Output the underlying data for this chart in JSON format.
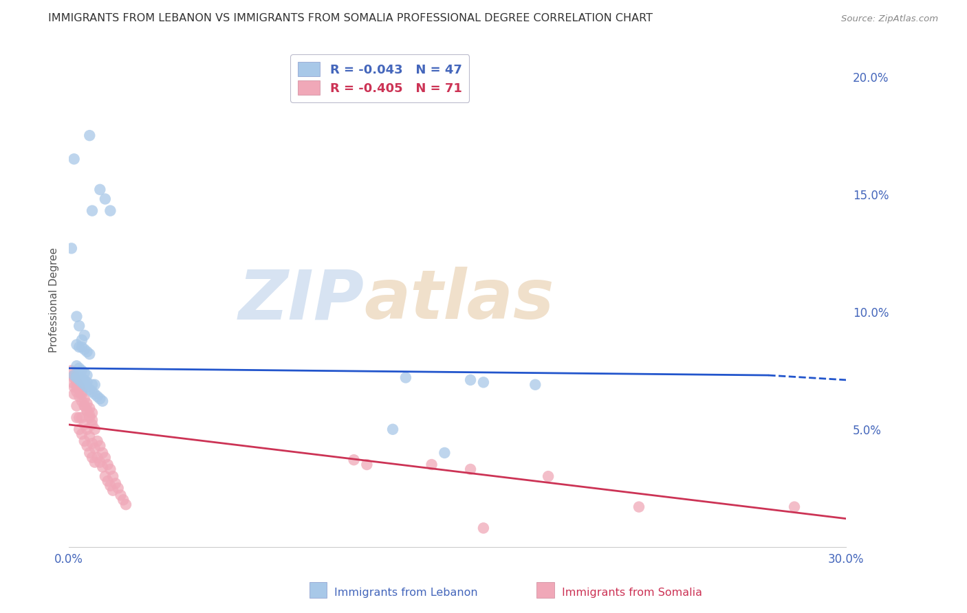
{
  "title": "IMMIGRANTS FROM LEBANON VS IMMIGRANTS FROM SOMALIA PROFESSIONAL DEGREE CORRELATION CHART",
  "source": "Source: ZipAtlas.com",
  "ylabel": "Professional Degree",
  "xlim": [
    0.0,
    0.3
  ],
  "ylim": [
    0.0,
    0.21
  ],
  "lebanon_color": "#a8c8e8",
  "somalia_color": "#f0a8b8",
  "lebanon_line_color": "#2255cc",
  "somalia_line_color": "#cc3355",
  "background_color": "#ffffff",
  "grid_color": "#ccccdd",
  "title_color": "#333333",
  "axis_color": "#4466bb",
  "somalia_label_color": "#cc3355",
  "watermark_text": "ZIPatlas",
  "watermark_color": "#d0dff0",
  "lebanon_R": -0.043,
  "lebanon_N": 47,
  "somalia_R": -0.405,
  "somalia_N": 71,
  "lebanon_x": [
    0.008,
    0.002,
    0.012,
    0.014,
    0.009,
    0.016,
    0.001,
    0.003,
    0.004,
    0.006,
    0.005,
    0.003,
    0.004,
    0.005,
    0.006,
    0.007,
    0.008,
    0.003,
    0.004,
    0.005,
    0.006,
    0.007,
    0.009,
    0.01,
    0.002,
    0.003,
    0.004,
    0.005,
    0.006,
    0.007,
    0.008,
    0.009,
    0.01,
    0.011,
    0.012,
    0.013,
    0.003,
    0.004,
    0.005,
    0.006,
    0.007,
    0.13,
    0.155,
    0.16,
    0.18,
    0.125,
    0.145
  ],
  "lebanon_y": [
    0.175,
    0.165,
    0.152,
    0.148,
    0.143,
    0.143,
    0.127,
    0.098,
    0.094,
    0.09,
    0.088,
    0.086,
    0.085,
    0.085,
    0.084,
    0.083,
    0.082,
    0.073,
    0.072,
    0.071,
    0.071,
    0.07,
    0.069,
    0.069,
    0.073,
    0.072,
    0.071,
    0.07,
    0.069,
    0.068,
    0.067,
    0.066,
    0.065,
    0.064,
    0.063,
    0.062,
    0.077,
    0.076,
    0.075,
    0.074,
    0.073,
    0.072,
    0.071,
    0.07,
    0.069,
    0.05,
    0.04
  ],
  "somalia_x": [
    0.002,
    0.002,
    0.003,
    0.003,
    0.003,
    0.004,
    0.004,
    0.004,
    0.005,
    0.005,
    0.005,
    0.006,
    0.006,
    0.006,
    0.007,
    0.007,
    0.007,
    0.008,
    0.008,
    0.008,
    0.009,
    0.009,
    0.009,
    0.01,
    0.01,
    0.01,
    0.011,
    0.011,
    0.012,
    0.012,
    0.013,
    0.013,
    0.014,
    0.014,
    0.015,
    0.015,
    0.016,
    0.016,
    0.017,
    0.017,
    0.018,
    0.019,
    0.02,
    0.021,
    0.022,
    0.001,
    0.002,
    0.003,
    0.004,
    0.005,
    0.006,
    0.007,
    0.008,
    0.009,
    0.001,
    0.002,
    0.003,
    0.004,
    0.005,
    0.006,
    0.007,
    0.008,
    0.009,
    0.115,
    0.155,
    0.11,
    0.14,
    0.16,
    0.22,
    0.28,
    0.185
  ],
  "somalia_y": [
    0.073,
    0.065,
    0.068,
    0.06,
    0.055,
    0.067,
    0.055,
    0.05,
    0.065,
    0.055,
    0.048,
    0.06,
    0.052,
    0.045,
    0.058,
    0.05,
    0.043,
    0.055,
    0.047,
    0.04,
    0.052,
    0.044,
    0.038,
    0.05,
    0.042,
    0.036,
    0.045,
    0.038,
    0.043,
    0.036,
    0.04,
    0.034,
    0.038,
    0.03,
    0.035,
    0.028,
    0.033,
    0.026,
    0.03,
    0.024,
    0.027,
    0.025,
    0.022,
    0.02,
    0.018,
    0.07,
    0.068,
    0.066,
    0.064,
    0.062,
    0.06,
    0.058,
    0.056,
    0.054,
    0.075,
    0.072,
    0.07,
    0.068,
    0.066,
    0.063,
    0.061,
    0.059,
    0.057,
    0.035,
    0.033,
    0.037,
    0.035,
    0.008,
    0.017,
    0.017,
    0.03
  ]
}
